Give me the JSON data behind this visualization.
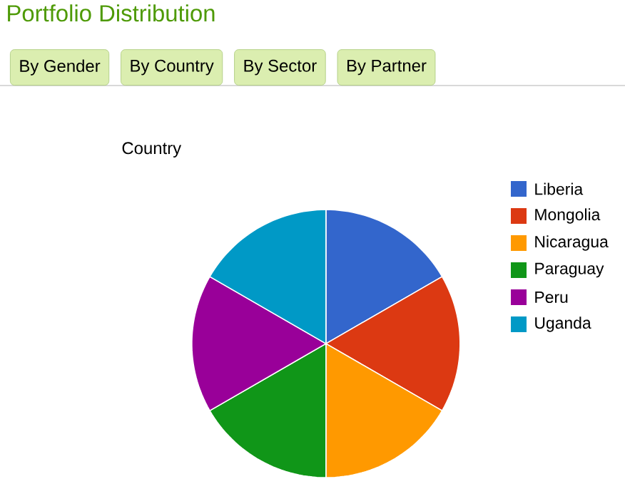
{
  "chart_data": {
    "type": "pie",
    "title": "Portfolio Distribution",
    "subtitle": "Country",
    "annotations": [
      "By Gender",
      "By Country",
      "By Sector",
      "By Partner"
    ],
    "categories": [
      "Liberia",
      "Mongolia",
      "Nicaragua",
      "Paraguay",
      "Peru",
      "Uganda"
    ],
    "values": [
      16.67,
      16.67,
      16.67,
      16.67,
      16.67,
      16.67
    ],
    "colors": [
      "#3366cc",
      "#dc3912",
      "#ff9900",
      "#109618",
      "#990099",
      "#0099c6"
    ],
    "legend": "right"
  }
}
